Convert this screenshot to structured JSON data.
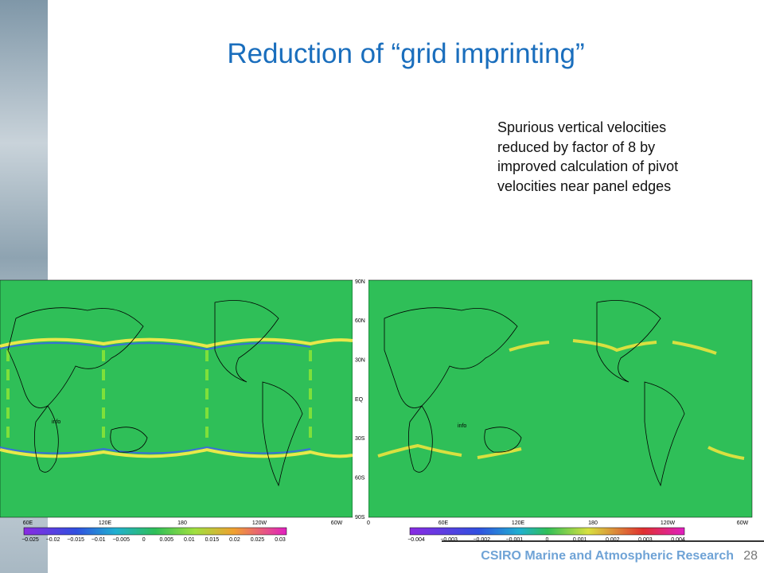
{
  "title": "Reduction of “grid imprinting”",
  "note": "Spurious vertical velocities reduced by factor of 8 by improved calculation of pivot velocities near panel edges",
  "footer": {
    "organization": "CSIRO Marine and Atmospheric Research",
    "page": "28"
  },
  "latitude_labels": [
    "90N",
    "60N",
    "30N",
    "EQ",
    "30S",
    "60S",
    "90S"
  ],
  "maps": [
    {
      "longitude_labels": [
        "60E",
        "120E",
        "180",
        "120W",
        "60W"
      ],
      "panel_label": "info",
      "colorbar_labels": [
        "−0.025",
        "−0.02",
        "−0.015",
        "−0.01",
        "−0.005",
        "0",
        "0.005",
        "0.01",
        "0.015",
        "0.02",
        "0.025",
        "0.03"
      ]
    },
    {
      "longitude_labels": [
        "0",
        "60E",
        "120E",
        "180",
        "120W",
        "60W"
      ],
      "panel_label": "info",
      "colorbar_labels": [
        "−0.004",
        "−0.003",
        "−0.002",
        "−0.001",
        "0",
        "0.001",
        "0.002",
        "0.003",
        "0.004"
      ]
    }
  ]
}
